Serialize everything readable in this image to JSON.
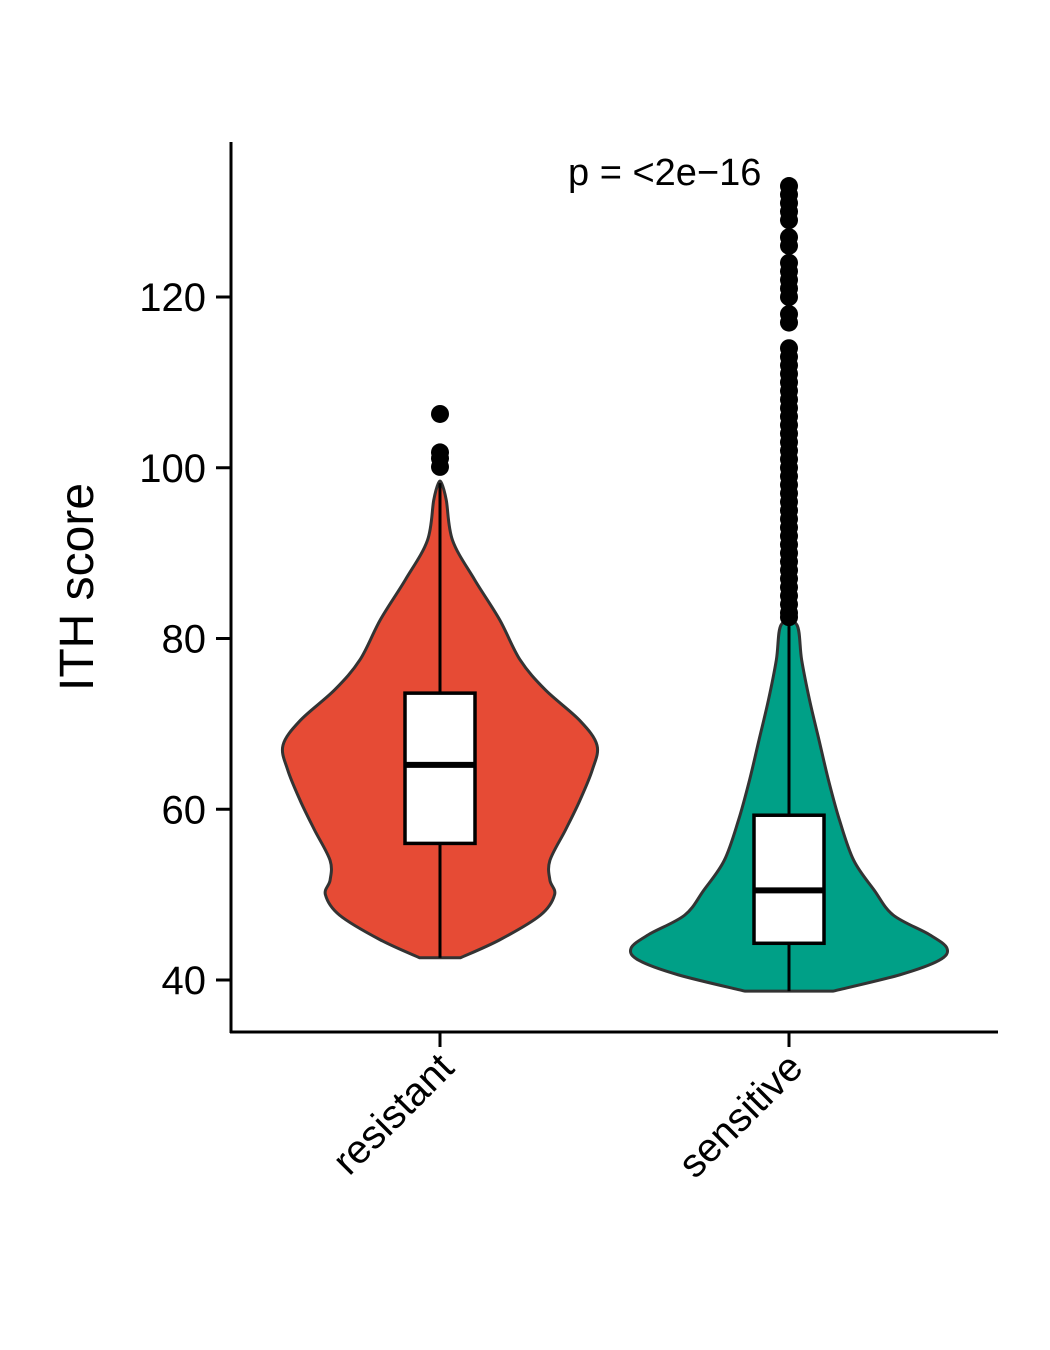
{
  "chart_data": {
    "type": "violin",
    "title": "",
    "xlabel": "",
    "ylabel": "ITH score",
    "ylim": [
      33.9,
      138.1
    ],
    "yticks": [
      40,
      60,
      80,
      100,
      120
    ],
    "ytick_labels": [
      "40",
      "60",
      "80",
      "100",
      "120"
    ],
    "categories": [
      "resistant",
      "sensitive"
    ],
    "annotation": "p = <2e−16",
    "grid": false,
    "legend": "none",
    "series": [
      {
        "name": "resistant",
        "color": "#E64B35",
        "box": {
          "q1": 56.0,
          "median": 65.2,
          "q3": 73.6,
          "whisker_low": 42.6,
          "whisker_high": 98.2
        },
        "outliers": [
          100.1,
          101.1,
          101.8,
          106.3
        ],
        "density_profile": [
          [
            42.6,
            0.13
          ],
          [
            44.7,
            0.38
          ],
          [
            47.6,
            0.64
          ],
          [
            50,
            0.73
          ],
          [
            51.7,
            0.7
          ],
          [
            54,
            0.7
          ],
          [
            57.6,
            0.8
          ],
          [
            61,
            0.89
          ],
          [
            64.6,
            0.97
          ],
          [
            67.5,
            1.0
          ],
          [
            70.4,
            0.89
          ],
          [
            74,
            0.67
          ],
          [
            77.5,
            0.51
          ],
          [
            82.2,
            0.38
          ],
          [
            86.9,
            0.22
          ],
          [
            91.5,
            0.08
          ],
          [
            96.2,
            0.04
          ],
          [
            98.2,
            0.01
          ]
        ]
      },
      {
        "name": "sensitive",
        "color": "#00A087",
        "box": {
          "q1": 44.3,
          "median": 50.5,
          "q3": 59.3,
          "whisker_low": 38.7,
          "whisker_high": 81.6
        },
        "outliers": [
          82.5,
          83,
          84,
          85,
          86,
          87,
          88,
          89,
          90,
          91,
          92,
          93,
          94,
          95,
          96,
          97,
          98,
          99,
          100,
          101,
          102,
          103,
          104,
          105,
          106,
          107,
          108,
          109,
          110,
          111,
          112,
          113,
          114,
          117,
          118,
          120,
          121,
          122,
          123,
          124,
          126,
          127,
          129,
          130,
          131,
          132,
          133
        ],
        "density_profile": [
          [
            38.7,
            0.28
          ],
          [
            40.6,
            0.7
          ],
          [
            42.3,
            0.95
          ],
          [
            43.7,
            1.0
          ],
          [
            45.3,
            0.89
          ],
          [
            47.6,
            0.66
          ],
          [
            50.5,
            0.54
          ],
          [
            54,
            0.41
          ],
          [
            58.7,
            0.32
          ],
          [
            63.4,
            0.25
          ],
          [
            68.1,
            0.19
          ],
          [
            72.8,
            0.13
          ],
          [
            77.5,
            0.08
          ],
          [
            81.6,
            0.05
          ]
        ]
      }
    ]
  }
}
